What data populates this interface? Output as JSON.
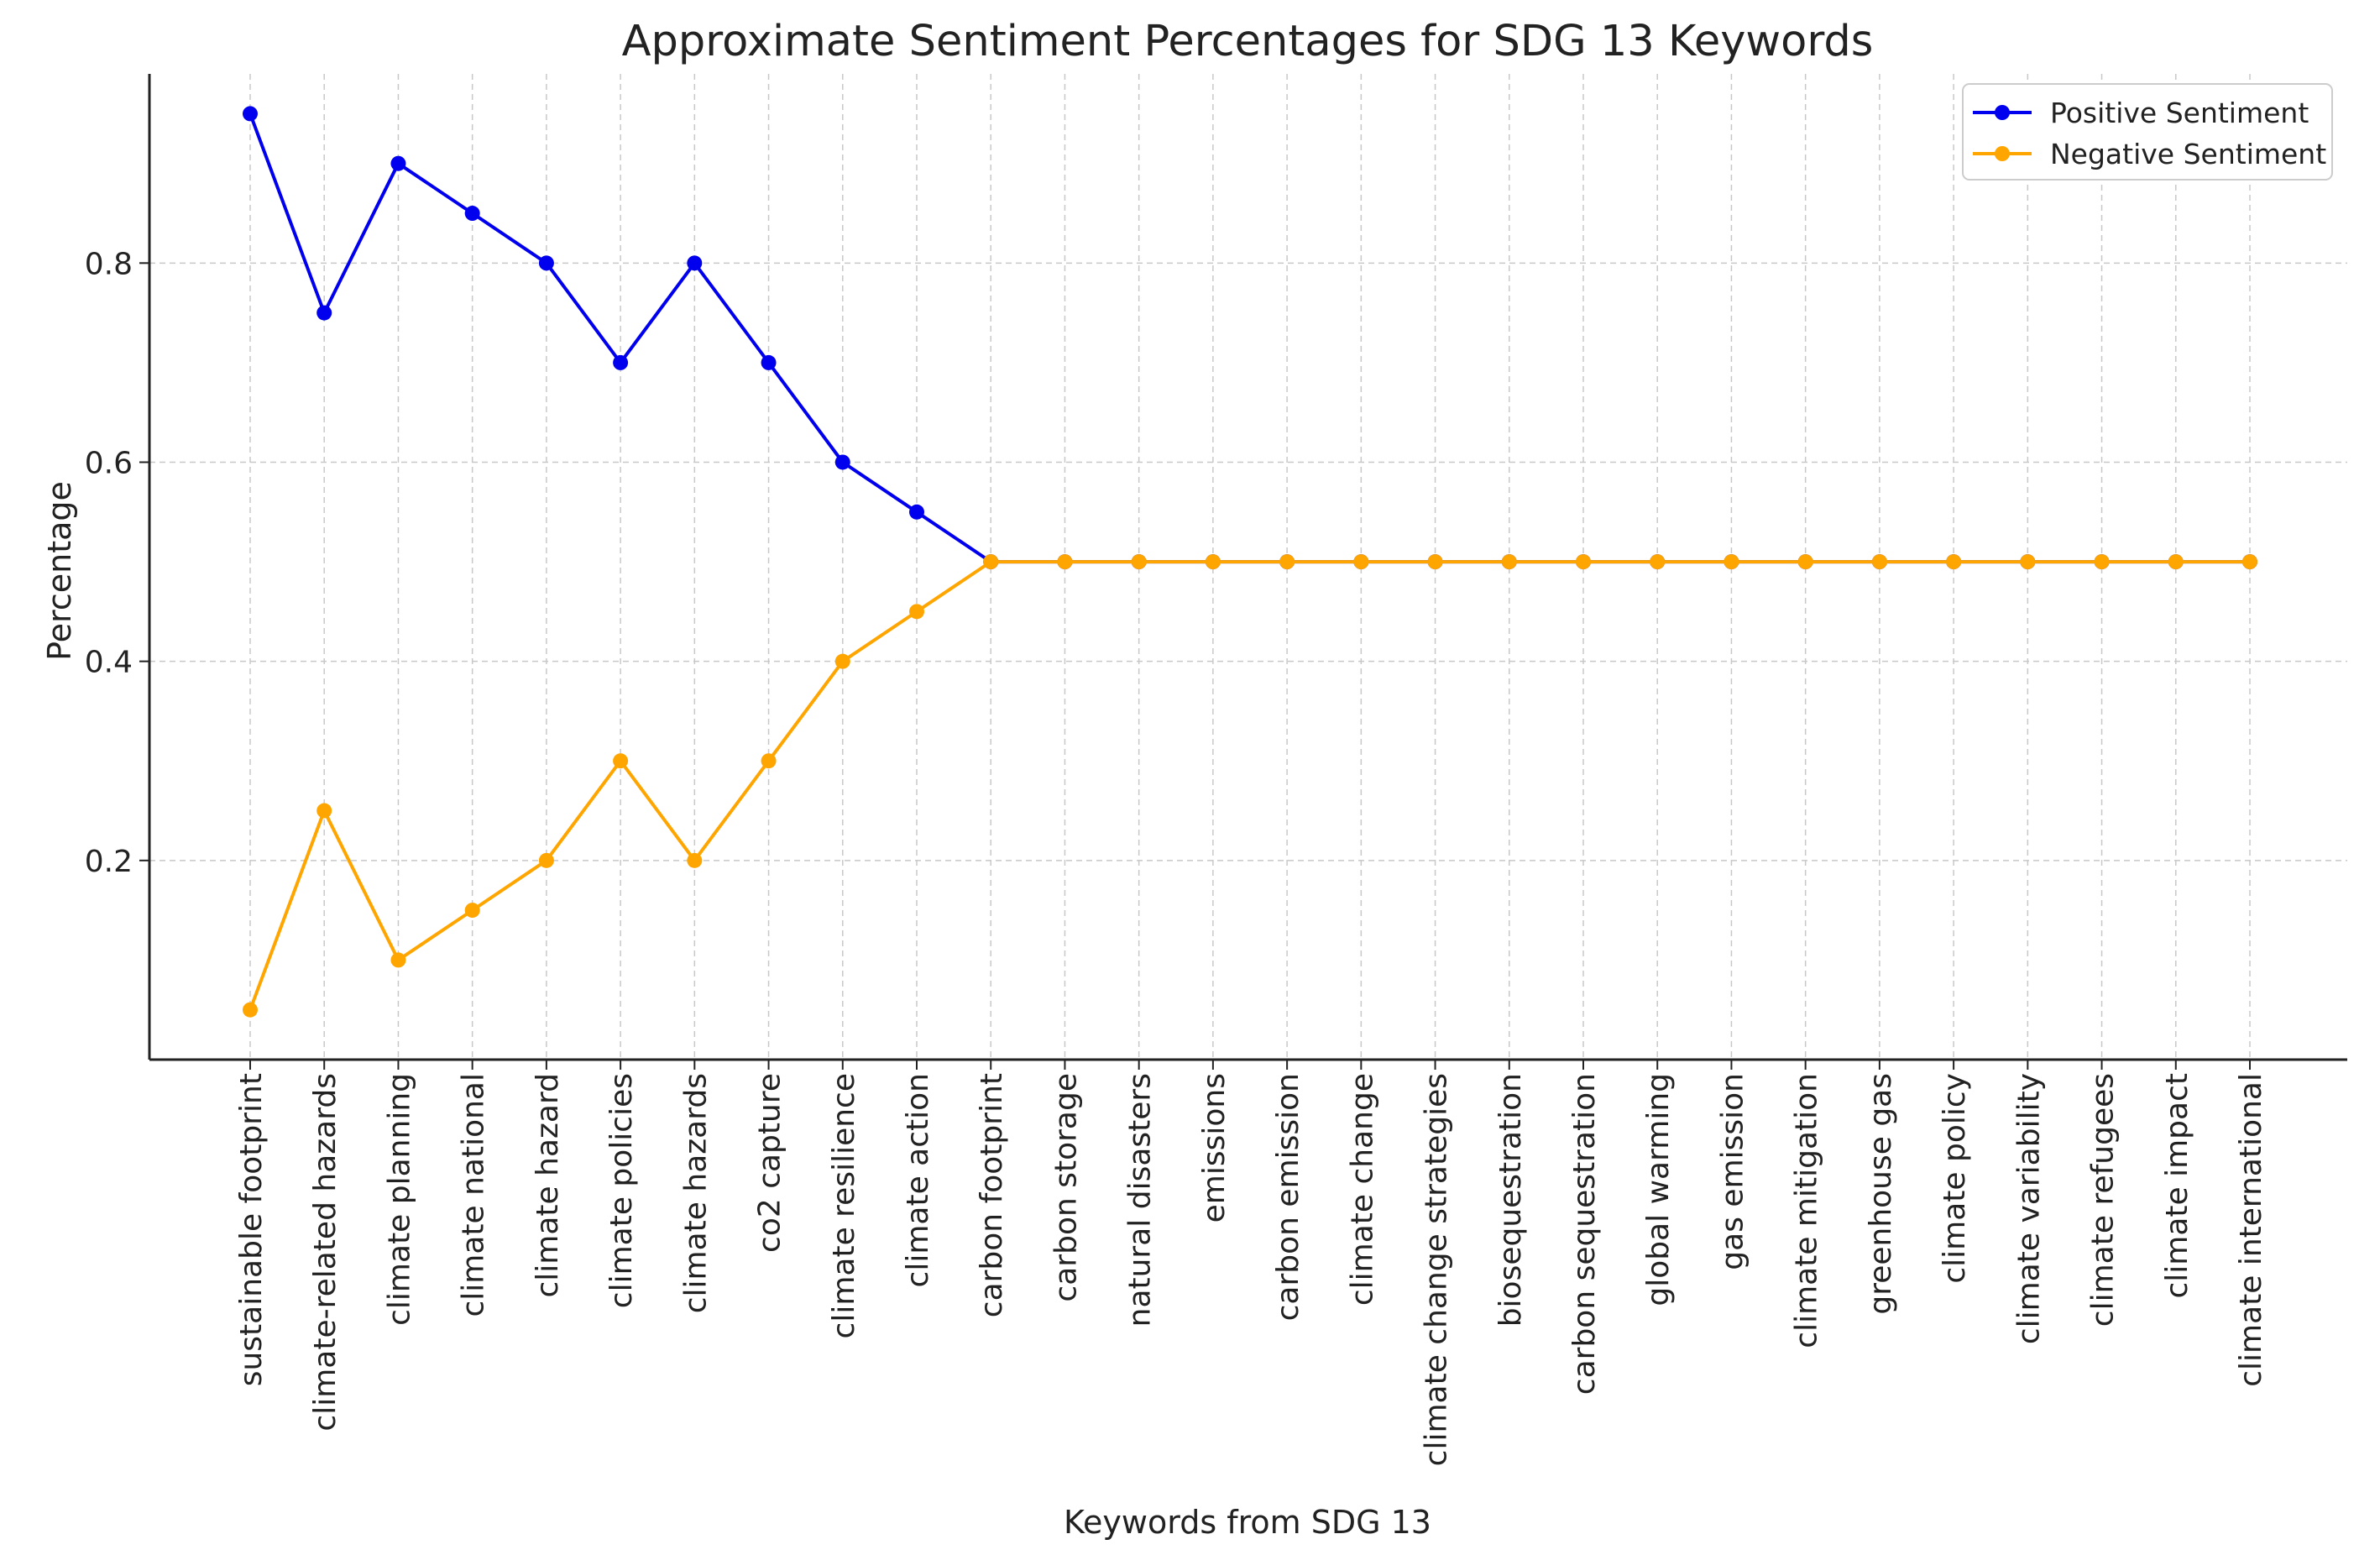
{
  "chart_data": {
    "type": "line",
    "title": "Approximate Sentiment Percentages for SDG 13 Keywords",
    "xlabel": "Keywords from SDG 13",
    "ylabel": "Percentage",
    "ylim": [
      0.0,
      0.99
    ],
    "yticks": [
      0.2,
      0.4,
      0.6,
      0.8
    ],
    "ytick_labels": [
      "0.2",
      "0.4",
      "0.6",
      "0.8"
    ],
    "grid": true,
    "legend_position": "top-right",
    "categories": [
      "sustainable footprint",
      "climate-related hazards",
      "climate planning",
      "climate national",
      "climate hazard",
      "climate policies",
      "climate hazards",
      "co2 capture",
      "climate resilience",
      "climate action",
      "carbon footprint",
      "carbon storage",
      "natural disasters",
      "emissions",
      "carbon emission",
      "climate change",
      "climate change strategies",
      "biosequestration",
      "carbon sequestration",
      "global warming",
      "gas emission",
      "climate mitigation",
      "greenhouse gas",
      "climate policy",
      "climate variability",
      "climate refugees",
      "climate impact",
      "climate international"
    ],
    "series": [
      {
        "name": "Positive Sentiment",
        "color": "#0000ee",
        "values": [
          0.95,
          0.75,
          0.9,
          0.85,
          0.8,
          0.7,
          0.8,
          0.7,
          0.6,
          0.55,
          0.5,
          0.5,
          0.5,
          0.5,
          0.5,
          0.5,
          0.5,
          0.5,
          0.5,
          0.5,
          0.5,
          0.5,
          0.5,
          0.5,
          0.5,
          0.5,
          0.5,
          0.5
        ]
      },
      {
        "name": "Negative Sentiment",
        "color": "#ffa500",
        "values": [
          0.05,
          0.25,
          0.1,
          0.15,
          0.2,
          0.3,
          0.2,
          0.3,
          0.4,
          0.45,
          0.5,
          0.5,
          0.5,
          0.5,
          0.5,
          0.5,
          0.5,
          0.5,
          0.5,
          0.5,
          0.5,
          0.5,
          0.5,
          0.5,
          0.5,
          0.5,
          0.5,
          0.5
        ]
      }
    ]
  }
}
